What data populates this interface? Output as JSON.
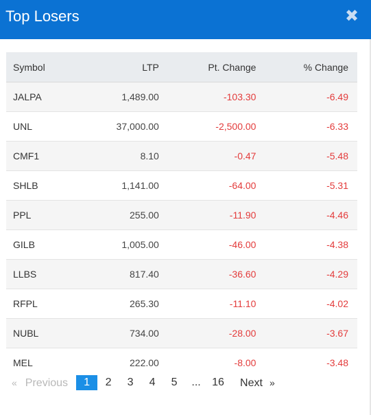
{
  "modal": {
    "title": "Top Losers",
    "close_glyph": "✖"
  },
  "table": {
    "headers": {
      "symbol": "Symbol",
      "ltp": "LTP",
      "pt_change": "Pt. Change",
      "pct_change": "% Change"
    },
    "rows": [
      {
        "symbol": "JALPA",
        "ltp": "1,489.00",
        "pt_change": "-103.30",
        "pct_change": "-6.49"
      },
      {
        "symbol": "UNL",
        "ltp": "37,000.00",
        "pt_change": "-2,500.00",
        "pct_change": "-6.33"
      },
      {
        "symbol": "CMF1",
        "ltp": "8.10",
        "pt_change": "-0.47",
        "pct_change": "-5.48"
      },
      {
        "symbol": "SHLB",
        "ltp": "1,141.00",
        "pt_change": "-64.00",
        "pct_change": "-5.31"
      },
      {
        "symbol": "PPL",
        "ltp": "255.00",
        "pt_change": "-11.90",
        "pct_change": "-4.46"
      },
      {
        "symbol": "GILB",
        "ltp": "1,005.00",
        "pt_change": "-46.00",
        "pct_change": "-4.38"
      },
      {
        "symbol": "LLBS",
        "ltp": "817.40",
        "pt_change": "-36.60",
        "pct_change": "-4.29"
      },
      {
        "symbol": "RFPL",
        "ltp": "265.30",
        "pt_change": "-11.10",
        "pct_change": "-4.02"
      },
      {
        "symbol": "NUBL",
        "ltp": "734.00",
        "pt_change": "-28.00",
        "pct_change": "-3.67"
      },
      {
        "symbol": "MEL",
        "ltp": "222.00",
        "pt_change": "-8.00",
        "pct_change": "-3.48"
      }
    ]
  },
  "pagination": {
    "prev_arrow": "«",
    "prev_label": "Previous",
    "pages": [
      "1",
      "2",
      "3",
      "4",
      "5"
    ],
    "ellipsis": "...",
    "last_page": "16",
    "next_label": "Next",
    "next_arrow": "»",
    "current_page": "1"
  },
  "colors": {
    "header_bg": "#0b72d3",
    "negative": "#e33b3b",
    "active_page": "#1b8fe6"
  }
}
